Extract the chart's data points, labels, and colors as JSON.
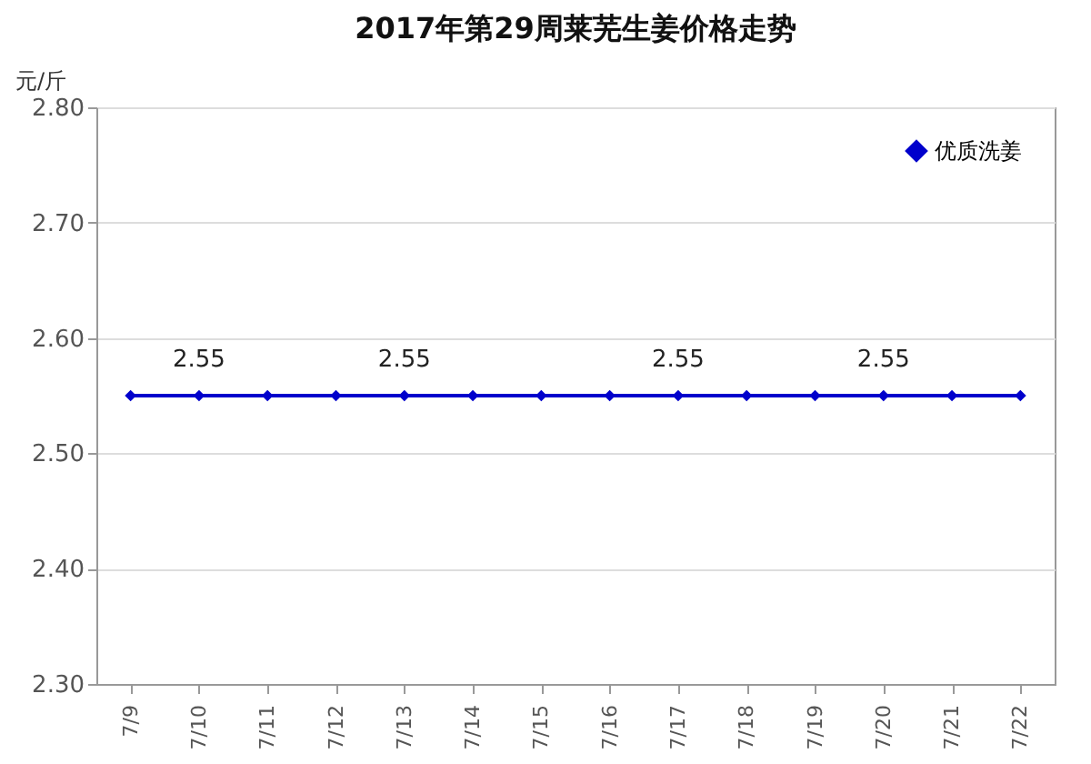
{
  "chart_data": {
    "type": "line",
    "title": "2017年第29周莱芜生姜价格走势",
    "ylabel": "元/斤",
    "categories": [
      "7/9",
      "7/10",
      "7/11",
      "7/12",
      "7/13",
      "7/14",
      "7/15",
      "7/16",
      "7/17",
      "7/18",
      "7/19",
      "7/20",
      "7/21",
      "7/22"
    ],
    "series": [
      {
        "name": "优质洗姜",
        "color": "#0000cc",
        "values": [
          2.55,
          2.55,
          2.55,
          2.55,
          2.55,
          2.55,
          2.55,
          2.55,
          2.55,
          2.55,
          2.55,
          2.55,
          2.55,
          2.55
        ],
        "value_labels": [
          null,
          "2.55",
          null,
          null,
          "2.55",
          null,
          null,
          null,
          "2.55",
          null,
          null,
          "2.55",
          null,
          null
        ]
      }
    ],
    "ylim": [
      2.3,
      2.8
    ],
    "yticks": [
      {
        "value": 2.3,
        "label": "2.30"
      },
      {
        "value": 2.4,
        "label": "2.40"
      },
      {
        "value": 2.5,
        "label": "2.50"
      },
      {
        "value": 2.6,
        "label": "2.60"
      },
      {
        "value": 2.7,
        "label": "2.70"
      },
      {
        "value": 2.8,
        "label": "2.80"
      }
    ],
    "grid": "y",
    "legend": "top right",
    "marker": "diamond",
    "line_style": "solid"
  }
}
